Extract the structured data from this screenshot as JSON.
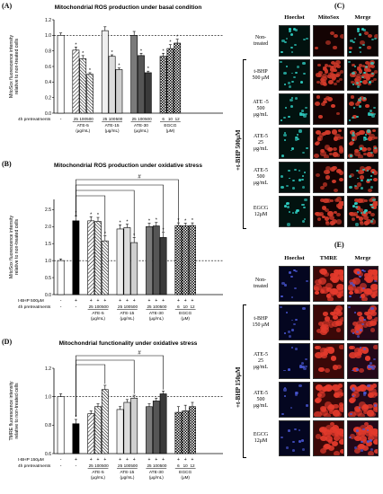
{
  "panels": {
    "A": {
      "label": "(A)",
      "title": "Mitochondrial ROS production under basal condition",
      "ylabel": "MitoSox fluorescence intensity\nrelative to non-treated cells",
      "pretreat_label": "4h pretreatments"
    },
    "B": {
      "label": "(B)",
      "title": "Mitochondrial ROS production under oxidative stress",
      "ylabel": "MitoSox fluorescence intensity\nrelative to non-treated cells",
      "tbhp_label": "t-BHP 500μM",
      "pretreat_label": "4h pretreatments",
      "hash": "#"
    },
    "C": {
      "label": "(C)"
    },
    "D": {
      "label": "(D)",
      "title": "Mitochondrial functionality under oxidative stress",
      "ylabel": "TMRE fluorescence intensity\nrelative to non-treated cells",
      "tbhp_label": "t-BHP 150μM",
      "pretreat_label": "4h pretreatments",
      "hash": "#"
    },
    "E": {
      "label": "(E)"
    }
  },
  "chart_data": [
    {
      "type": "bar",
      "panel": "A",
      "title": "Mitochondrial ROS production under basal condition",
      "ylabel": "MitoSox fluorescence intensity relative to non-treated cells",
      "ylim": [
        0,
        1.2
      ],
      "yticks": [
        0.0,
        0.2,
        0.4,
        0.6,
        0.8,
        1.0,
        1.2
      ],
      "groups": [
        {
          "name": "-",
          "doses": [
            "-"
          ],
          "values": [
            1.0
          ],
          "errors": [
            0.03
          ],
          "sig": [
            ""
          ]
        },
        {
          "name": "ATE-5",
          "unit": "(μg/mL)",
          "doses": [
            "25",
            "100",
            "500"
          ],
          "values": [
            0.81,
            0.7,
            0.5
          ],
          "errors": [
            0.04,
            0.04,
            0.02
          ],
          "sig": [
            "*",
            "*",
            "*"
          ]
        },
        {
          "name": "ATE-15",
          "unit": "(μg/mL)",
          "doses": [
            "25",
            "100",
            "500"
          ],
          "values": [
            1.06,
            0.73,
            0.56
          ],
          "errors": [
            0.05,
            0.02,
            0.02
          ],
          "sig": [
            "",
            "*",
            "*"
          ]
        },
        {
          "name": "ATE-30",
          "unit": "(μg/mL)",
          "doses": [
            "25",
            "100",
            "500"
          ],
          "values": [
            1.0,
            0.74,
            0.52
          ],
          "errors": [
            0.05,
            0.03,
            0.02
          ],
          "sig": [
            "",
            "*",
            "*"
          ]
        },
        {
          "name": "EGCG",
          "unit": "(μM)",
          "doses": [
            "6",
            "10",
            "12"
          ],
          "values": [
            0.73,
            0.83,
            0.9
          ],
          "errors": [
            0.04,
            0.05,
            0.05
          ],
          "sig": [
            "*",
            "*",
            "*"
          ]
        }
      ]
    },
    {
      "type": "bar",
      "panel": "B",
      "title": "Mitochondrial ROS production under oxidative stress",
      "ylabel": "MitoSox fluorescence intensity relative to non-treated cells",
      "ylim": [
        0.0,
        2.8
      ],
      "yticks": [
        0.0,
        0.5,
        1.0,
        1.5,
        2.0,
        2.5
      ],
      "tbhp": [
        "-",
        "+",
        "+",
        "+",
        "+",
        "+",
        "+",
        "+",
        "+",
        "+",
        "+",
        "+",
        "+",
        "+"
      ],
      "groups": [
        {
          "name": "-",
          "doses": [
            "-"
          ],
          "values": [
            1.0
          ],
          "errors": [
            0.05
          ],
          "sig": [
            ""
          ]
        },
        {
          "name": "tbhp",
          "doses": [
            "-"
          ],
          "values": [
            2.17
          ],
          "errors": [
            0.15
          ],
          "sig": [
            "*"
          ]
        },
        {
          "name": "ATE-5",
          "unit": "(μg/mL)",
          "doses": [
            "25",
            "100",
            "500"
          ],
          "values": [
            2.17,
            2.15,
            1.58
          ],
          "errors": [
            0.12,
            0.12,
            0.15
          ],
          "sig": [
            "*",
            "*",
            "*"
          ]
        },
        {
          "name": "ATE-15",
          "unit": "(μg/mL)",
          "doses": [
            "25",
            "100",
            "500"
          ],
          "values": [
            1.93,
            1.97,
            1.53
          ],
          "errors": [
            0.12,
            0.1,
            0.15
          ],
          "sig": [
            "*",
            "*",
            "*"
          ]
        },
        {
          "name": "ATE-30",
          "unit": "(μg/mL)",
          "doses": [
            "25",
            "100",
            "500"
          ],
          "values": [
            2.0,
            2.02,
            1.68
          ],
          "errors": [
            0.1,
            0.1,
            0.15
          ],
          "sig": [
            "*",
            "*",
            "*"
          ]
        },
        {
          "name": "EGCG",
          "unit": "(μM)",
          "doses": [
            "6",
            "10",
            "12"
          ],
          "values": [
            2.03,
            2.02,
            2.03
          ],
          "errors": [
            0.08,
            0.08,
            0.08
          ],
          "sig": [
            "*",
            "*",
            "*"
          ]
        }
      ]
    },
    {
      "type": "bar",
      "panel": "D",
      "title": "Mitochondrial functionality under oxidative stress",
      "ylabel": "TMRE fluorescence intensity relative to non-treated cells",
      "ylim": [
        0.6,
        1.2
      ],
      "yticks": [
        0.6,
        0.8,
        1.0,
        1.2
      ],
      "tbhp": [
        "-",
        "+",
        "+",
        "+",
        "+",
        "+",
        "+",
        "+",
        "+",
        "+",
        "+",
        "+",
        "+",
        "+"
      ],
      "groups": [
        {
          "name": "-",
          "doses": [
            "-"
          ],
          "values": [
            1.0
          ],
          "errors": [
            0.02
          ],
          "sig": [
            ""
          ]
        },
        {
          "name": "tbhp",
          "doses": [
            "-"
          ],
          "values": [
            0.81
          ],
          "errors": [
            0.03
          ],
          "sig": [
            "*"
          ]
        },
        {
          "name": "ATE-5",
          "unit": "(μg/mL)",
          "doses": [
            "25",
            "100",
            "500"
          ],
          "values": [
            0.88,
            0.93,
            1.05
          ],
          "errors": [
            0.02,
            0.02,
            0.03
          ],
          "sig": [
            "",
            "",
            ""
          ]
        },
        {
          "name": "ATE-15",
          "unit": "(μg/mL)",
          "doses": [
            "25",
            "100",
            "500"
          ],
          "values": [
            0.91,
            0.96,
            0.99
          ],
          "errors": [
            0.02,
            0.02,
            0.02
          ],
          "sig": [
            "",
            "",
            ""
          ]
        },
        {
          "name": "ATE-30",
          "unit": "(μg/mL)",
          "doses": [
            "25",
            "100",
            "500"
          ],
          "values": [
            0.93,
            0.97,
            1.02
          ],
          "errors": [
            0.02,
            0.02,
            0.02
          ],
          "sig": [
            "",
            "",
            ""
          ]
        },
        {
          "name": "EGCG",
          "unit": "(μM)",
          "doses": [
            "6",
            "10",
            "12"
          ],
          "values": [
            0.89,
            0.9,
            0.93
          ],
          "errors": [
            0.04,
            0.04,
            0.03
          ],
          "sig": [
            "",
            "",
            ""
          ]
        }
      ]
    }
  ],
  "micrographs_C": {
    "headers": [
      "Hoechst",
      "MitoSox",
      "Merge"
    ],
    "rows": [
      "Non-\ntreated",
      "t-BHP\n500 μM",
      "ATE -5\n500\nμg/mL",
      "ATE-5\n25\nμg/mL",
      "ATE-5\n500\nμg/mL",
      "EGCG\n12μM"
    ],
    "group_label": "+t-BHP 500μM"
  },
  "micrographs_E": {
    "headers": [
      "Hoechst",
      "TMRE",
      "Merge"
    ],
    "rows": [
      "Non-\ntreated",
      "t-BHP\n150 μM",
      "ATE-5\n25\nμg/mL",
      "ATE-5\n500\nμg/mL",
      "EGCG\n12μM"
    ],
    "group_label": "+t-BHP 150μM"
  }
}
